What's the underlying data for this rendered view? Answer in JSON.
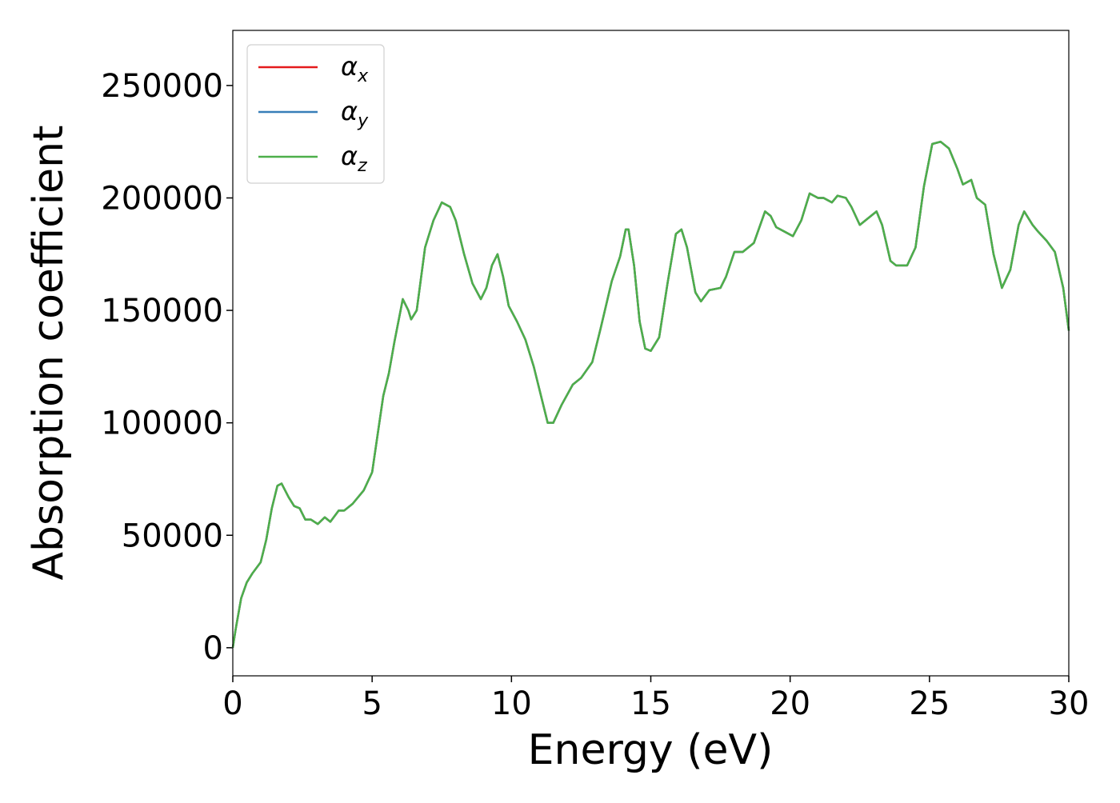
{
  "chart_data": {
    "type": "line",
    "xlabel": "Energy (eV)",
    "ylabel": "Absorption coefficient",
    "x": [
      0,
      0.1,
      0.3,
      0.5,
      0.7,
      1.0,
      1.2,
      1.4,
      1.6,
      1.75,
      2.0,
      2.2,
      2.4,
      2.6,
      2.8,
      3.05,
      3.3,
      3.5,
      3.8,
      4.0,
      4.3,
      4.7,
      5.0,
      5.2,
      5.4,
      5.6,
      5.8,
      6.1,
      6.3,
      6.4,
      6.6,
      6.9,
      7.2,
      7.5,
      7.8,
      8.0,
      8.3,
      8.6,
      8.9,
      9.1,
      9.3,
      9.5,
      9.7,
      9.9,
      10.2,
      10.5,
      10.8,
      11.1,
      11.3,
      11.5,
      11.8,
      12.2,
      12.5,
      12.9,
      13.2,
      13.6,
      13.9,
      14.1,
      14.2,
      14.4,
      14.6,
      14.8,
      15.0,
      15.3,
      15.6,
      15.9,
      16.1,
      16.3,
      16.6,
      16.8,
      17.1,
      17.5,
      17.7,
      18.0,
      18.3,
      18.7,
      19.1,
      19.3,
      19.5,
      19.8,
      20.1,
      20.4,
      20.7,
      21.0,
      21.2,
      21.5,
      21.7,
      22.0,
      22.2,
      22.5,
      22.7,
      23.1,
      23.3,
      23.6,
      23.8,
      24.2,
      24.5,
      24.8,
      25.1,
      25.4,
      25.7,
      26.0,
      26.2,
      26.5,
      26.7,
      27.0,
      27.3,
      27.6,
      27.9,
      28.2,
      28.4,
      28.7,
      28.9,
      29.2,
      29.5,
      29.8,
      30.0
    ],
    "series": [
      {
        "name": "αx",
        "color": "#e41a1c",
        "values": [
          0,
          8000,
          22000,
          29000,
          33000,
          38000,
          48000,
          62000,
          72000,
          73000,
          67000,
          63000,
          62000,
          57000,
          57000,
          55000,
          58000,
          56000,
          61000,
          61000,
          64000,
          70000,
          78000,
          95000,
          112000,
          122000,
          136000,
          155000,
          150000,
          146000,
          150000,
          178000,
          190000,
          198000,
          196000,
          190000,
          175000,
          162000,
          155000,
          160000,
          170000,
          175000,
          165000,
          152000,
          145000,
          137000,
          125000,
          110000,
          100000,
          100000,
          108000,
          117000,
          120000,
          127000,
          142000,
          163000,
          174000,
          186000,
          186000,
          170000,
          145000,
          133000,
          132000,
          138000,
          162000,
          184000,
          186000,
          178000,
          158000,
          154000,
          159000,
          160000,
          165000,
          176000,
          176000,
          180000,
          194000,
          192000,
          187000,
          185000,
          183000,
          190000,
          202000,
          200000,
          200000,
          198000,
          201000,
          200000,
          196000,
          188000,
          190000,
          194000,
          188000,
          172000,
          170000,
          170000,
          178000,
          205000,
          224000,
          225000,
          222000,
          213000,
          206000,
          208000,
          200000,
          197000,
          175000,
          160000,
          168000,
          188000,
          194000,
          188000,
          185000,
          181000,
          176000,
          160000,
          141000
        ]
      },
      {
        "name": "αy",
        "color": "#377eb8",
        "values": [
          0,
          8000,
          22000,
          29000,
          33000,
          38000,
          48000,
          62000,
          72000,
          73000,
          67000,
          63000,
          62000,
          57000,
          57000,
          55000,
          58000,
          56000,
          61000,
          61000,
          64000,
          70000,
          78000,
          95000,
          112000,
          122000,
          136000,
          155000,
          150000,
          146000,
          150000,
          178000,
          190000,
          198000,
          196000,
          190000,
          175000,
          162000,
          155000,
          160000,
          170000,
          175000,
          165000,
          152000,
          145000,
          137000,
          125000,
          110000,
          100000,
          100000,
          108000,
          117000,
          120000,
          127000,
          142000,
          163000,
          174000,
          186000,
          186000,
          170000,
          145000,
          133000,
          132000,
          138000,
          162000,
          184000,
          186000,
          178000,
          158000,
          154000,
          159000,
          160000,
          165000,
          176000,
          176000,
          180000,
          194000,
          192000,
          187000,
          185000,
          183000,
          190000,
          202000,
          200000,
          200000,
          198000,
          201000,
          200000,
          196000,
          188000,
          190000,
          194000,
          188000,
          172000,
          170000,
          170000,
          178000,
          205000,
          224000,
          225000,
          222000,
          213000,
          206000,
          208000,
          200000,
          197000,
          175000,
          160000,
          168000,
          188000,
          194000,
          188000,
          185000,
          181000,
          176000,
          160000,
          141000
        ]
      },
      {
        "name": "αz",
        "color": "#4daf4a",
        "values": [
          0,
          8000,
          22000,
          29000,
          33000,
          38000,
          48000,
          62000,
          72000,
          73000,
          67000,
          63000,
          62000,
          57000,
          57000,
          55000,
          58000,
          56000,
          61000,
          61000,
          64000,
          70000,
          78000,
          95000,
          112000,
          122000,
          136000,
          155000,
          150000,
          146000,
          150000,
          178000,
          190000,
          198000,
          196000,
          190000,
          175000,
          162000,
          155000,
          160000,
          170000,
          175000,
          165000,
          152000,
          145000,
          137000,
          125000,
          110000,
          100000,
          100000,
          108000,
          117000,
          120000,
          127000,
          142000,
          163000,
          174000,
          186000,
          186000,
          170000,
          145000,
          133000,
          132000,
          138000,
          162000,
          184000,
          186000,
          178000,
          158000,
          154000,
          159000,
          160000,
          165000,
          176000,
          176000,
          180000,
          194000,
          192000,
          187000,
          185000,
          183000,
          190000,
          202000,
          200000,
          200000,
          198000,
          201000,
          200000,
          196000,
          188000,
          190000,
          194000,
          188000,
          172000,
          170000,
          170000,
          178000,
          205000,
          224000,
          225000,
          222000,
          213000,
          206000,
          208000,
          200000,
          197000,
          175000,
          160000,
          168000,
          188000,
          194000,
          188000,
          185000,
          181000,
          176000,
          160000,
          141000
        ]
      }
    ],
    "xlim": [
      0,
      30
    ],
    "xticks": [
      0,
      5,
      10,
      15,
      20,
      25,
      30
    ],
    "ylim": [
      -12500,
      274500
    ],
    "yticks": [
      0,
      50000,
      100000,
      150000,
      200000,
      250000
    ],
    "grid": false,
    "legend": "upper left"
  }
}
